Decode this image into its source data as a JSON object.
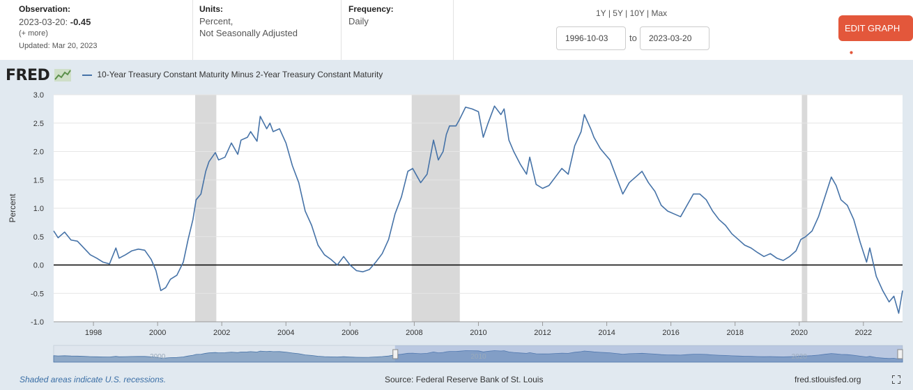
{
  "header": {
    "observation_label": "Observation:",
    "observation_date": "2023-03-20:",
    "observation_value": "-0.45",
    "more_label": "(+ more)",
    "updated": "Updated: Mar 20, 2023",
    "units_label": "Units:",
    "units_line1": "Percent,",
    "units_line2": "Not Seasonally Adjusted",
    "frequency_label": "Frequency:",
    "frequency_value": "Daily",
    "range_1y": "1Y",
    "range_5y": "5Y",
    "range_10y": "10Y",
    "range_max": "Max",
    "sep": "|",
    "date_start": "1996-10-03",
    "date_to": "to",
    "date_end": "2023-03-20",
    "edit_graph": "EDIT GRAPH"
  },
  "logo_text": "FRED",
  "footer": {
    "recession_note": "Shaded areas indicate U.S. recessions.",
    "source": "Source: Federal Reserve Bank of St. Louis",
    "site": "fred.stlouisfed.org"
  },
  "colors": {
    "line": "#4572a7",
    "recession": "#d9d9d9",
    "edit_button": "#e3573b",
    "panel": "#e1e9f0"
  },
  "chart_data": {
    "type": "line",
    "title": "10-Year Treasury Constant Maturity Minus 2-Year Treasury Constant Maturity",
    "xlabel": "",
    "ylabel": "Percent",
    "xlim": [
      1996.76,
      2023.22
    ],
    "ylim": [
      -1.0,
      3.0
    ],
    "yticks": [
      -1.0,
      -0.5,
      0.0,
      0.5,
      1.0,
      1.5,
      2.0,
      2.5,
      3.0
    ],
    "ytick_labels": [
      "-1.0",
      "-0.5",
      "0.0",
      "0.5",
      "1.0",
      "1.5",
      "2.0",
      "2.5",
      "3.0"
    ],
    "xticks": [
      1998,
      2000,
      2002,
      2004,
      2006,
      2008,
      2010,
      2012,
      2014,
      2016,
      2018,
      2020,
      2022
    ],
    "xtick_labels": [
      "1998",
      "2000",
      "2002",
      "2004",
      "2006",
      "2008",
      "2010",
      "2012",
      "2014",
      "2016",
      "2018",
      "2020",
      "2022"
    ],
    "navigator_labels": [
      "2000",
      "2010",
      "2020"
    ],
    "recessions": [
      [
        2001.17,
        2001.83
      ],
      [
        2007.92,
        2009.42
      ],
      [
        2020.08,
        2020.25
      ]
    ],
    "zero_line": 0.0,
    "series": [
      {
        "name": "10-Year Treasury Constant Maturity Minus 2-Year Treasury Constant Maturity",
        "x": [
          1996.76,
          1996.9,
          1997.1,
          1997.3,
          1997.5,
          1997.7,
          1997.9,
          1998.1,
          1998.3,
          1998.5,
          1998.7,
          1998.8,
          1999.0,
          1999.2,
          1999.4,
          1999.6,
          1999.8,
          1999.95,
          2000.1,
          2000.25,
          2000.4,
          2000.6,
          2000.8,
          2000.95,
          2001.1,
          2001.2,
          2001.35,
          2001.5,
          2001.6,
          2001.8,
          2001.9,
          2002.1,
          2002.3,
          2002.5,
          2002.6,
          2002.8,
          2002.9,
          2003.1,
          2003.2,
          2003.4,
          2003.5,
          2003.6,
          2003.8,
          2004.0,
          2004.2,
          2004.4,
          2004.6,
          2004.8,
          2005.0,
          2005.2,
          2005.4,
          2005.6,
          2005.8,
          2006.0,
          2006.2,
          2006.4,
          2006.6,
          2006.8,
          2007.0,
          2007.2,
          2007.4,
          2007.6,
          2007.8,
          2007.95,
          2008.1,
          2008.2,
          2008.4,
          2008.6,
          2008.75,
          2008.9,
          2009.0,
          2009.1,
          2009.3,
          2009.4,
          2009.6,
          2009.8,
          2010.0,
          2010.15,
          2010.3,
          2010.5,
          2010.7,
          2010.8,
          2010.95,
          2011.1,
          2011.3,
          2011.5,
          2011.6,
          2011.8,
          2012.0,
          2012.2,
          2012.4,
          2012.6,
          2012.8,
          2013.0,
          2013.2,
          2013.3,
          2013.5,
          2013.6,
          2013.8,
          2013.95,
          2014.1,
          2014.3,
          2014.5,
          2014.7,
          2014.9,
          2015.1,
          2015.3,
          2015.5,
          2015.7,
          2015.9,
          2016.1,
          2016.3,
          2016.5,
          2016.7,
          2016.9,
          2017.1,
          2017.3,
          2017.5,
          2017.7,
          2017.9,
          2018.1,
          2018.3,
          2018.5,
          2018.7,
          2018.9,
          2019.1,
          2019.3,
          2019.5,
          2019.7,
          2019.9,
          2020.05,
          2020.2,
          2020.4,
          2020.6,
          2020.8,
          2021.0,
          2021.15,
          2021.3,
          2021.5,
          2021.7,
          2021.9,
          2022.1,
          2022.2,
          2022.4,
          2022.6,
          2022.8,
          2022.95,
          2023.1,
          2023.22
        ],
        "y": [
          0.6,
          0.48,
          0.58,
          0.44,
          0.42,
          0.3,
          0.18,
          0.12,
          0.05,
          0.02,
          0.3,
          0.12,
          0.18,
          0.25,
          0.28,
          0.26,
          0.1,
          -0.1,
          -0.45,
          -0.4,
          -0.25,
          -0.18,
          0.05,
          0.45,
          0.8,
          1.15,
          1.25,
          1.65,
          1.82,
          1.98,
          1.85,
          1.9,
          2.15,
          1.95,
          2.2,
          2.25,
          2.35,
          2.18,
          2.62,
          2.4,
          2.5,
          2.35,
          2.4,
          2.15,
          1.75,
          1.45,
          0.95,
          0.7,
          0.35,
          0.18,
          0.1,
          0.0,
          0.15,
          0.0,
          -0.1,
          -0.12,
          -0.08,
          0.05,
          0.2,
          0.45,
          0.9,
          1.2,
          1.65,
          1.7,
          1.55,
          1.45,
          1.6,
          2.2,
          1.85,
          2.0,
          2.3,
          2.45,
          2.45,
          2.55,
          2.78,
          2.75,
          2.7,
          2.25,
          2.5,
          2.8,
          2.65,
          2.75,
          2.2,
          2.0,
          1.78,
          1.6,
          1.9,
          1.42,
          1.35,
          1.4,
          1.55,
          1.7,
          1.6,
          2.1,
          2.35,
          2.65,
          2.4,
          2.25,
          2.05,
          1.95,
          1.85,
          1.55,
          1.25,
          1.45,
          1.55,
          1.65,
          1.45,
          1.3,
          1.05,
          0.95,
          0.9,
          0.85,
          1.05,
          1.25,
          1.25,
          1.15,
          0.95,
          0.8,
          0.7,
          0.55,
          0.45,
          0.35,
          0.3,
          0.22,
          0.15,
          0.2,
          0.12,
          0.08,
          0.15,
          0.25,
          0.45,
          0.5,
          0.6,
          0.85,
          1.2,
          1.55,
          1.4,
          1.15,
          1.05,
          0.8,
          0.4,
          0.05,
          0.3,
          -0.2,
          -0.45,
          -0.65,
          -0.55,
          -0.85,
          -0.45
        ]
      }
    ]
  }
}
